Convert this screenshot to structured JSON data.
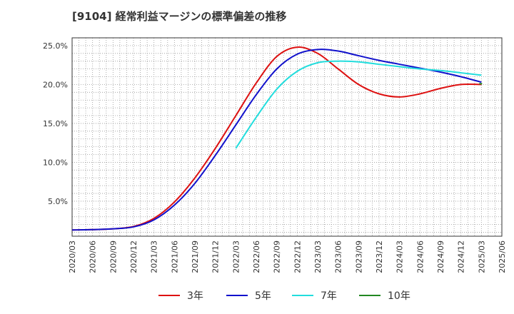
{
  "chart_data": {
    "type": "line",
    "title": "[9104]  経常利益マージンの標準偏差の推移",
    "xlabel": "",
    "ylabel": "",
    "x_ticks": [
      "2020/03",
      "2020/06",
      "2020/09",
      "2020/12",
      "2021/03",
      "2021/06",
      "2021/09",
      "2021/12",
      "2022/03",
      "2022/06",
      "2022/09",
      "2022/12",
      "2023/03",
      "2023/06",
      "2023/09",
      "2023/12",
      "2024/03",
      "2024/06",
      "2024/09",
      "2024/12",
      "2025/03",
      "2025/06"
    ],
    "y_ticks": [
      5.0,
      10.0,
      15.0,
      20.0,
      25.0
    ],
    "y_tick_labels": [
      "5.0%",
      "10.0%",
      "15.0%",
      "20.0%",
      "25.0%"
    ],
    "ylim": [
      0.5,
      26.0
    ],
    "grid": true,
    "legend_position": "bottom",
    "series": [
      {
        "name": "3年",
        "color": "#dd1111",
        "x": [
          "2020/03",
          "2020/06",
          "2020/09",
          "2020/12",
          "2021/03",
          "2021/06",
          "2021/09",
          "2021/12",
          "2022/03",
          "2022/06",
          "2022/09",
          "2022/12",
          "2023/03",
          "2023/06",
          "2023/09",
          "2023/12",
          "2024/03",
          "2024/06",
          "2024/09",
          "2024/12",
          "2025/03"
        ],
        "values": [
          1.3,
          1.35,
          1.45,
          1.75,
          2.8,
          4.9,
          8.0,
          11.8,
          16.0,
          20.2,
          23.6,
          24.8,
          24.0,
          22.0,
          20.0,
          18.8,
          18.4,
          18.8,
          19.5,
          20.0,
          20.0
        ]
      },
      {
        "name": "5年",
        "color": "#1111cc",
        "x": [
          "2020/03",
          "2020/06",
          "2020/09",
          "2020/12",
          "2021/03",
          "2021/06",
          "2021/09",
          "2021/12",
          "2022/03",
          "2022/06",
          "2022/09",
          "2022/12",
          "2023/03",
          "2023/06",
          "2023/09",
          "2023/12",
          "2024/03",
          "2024/06",
          "2024/09",
          "2024/12",
          "2025/03"
        ],
        "values": [
          1.3,
          1.35,
          1.45,
          1.7,
          2.6,
          4.5,
          7.3,
          10.9,
          14.8,
          18.7,
          22.0,
          23.9,
          24.5,
          24.3,
          23.7,
          23.1,
          22.6,
          22.1,
          21.6,
          21.0,
          20.3
        ]
      },
      {
        "name": "7年",
        "color": "#22dddd",
        "x": [
          "2022/03",
          "2022/06",
          "2022/09",
          "2022/12",
          "2023/03",
          "2023/06",
          "2023/09",
          "2023/12",
          "2024/03",
          "2024/06",
          "2024/09",
          "2024/12",
          "2025/03"
        ],
        "values": [
          11.8,
          15.8,
          19.4,
          21.7,
          22.8,
          23.0,
          22.9,
          22.6,
          22.3,
          22.0,
          21.8,
          21.5,
          21.2
        ]
      },
      {
        "name": "10年",
        "color": "#228822",
        "x": [
          "2025/03"
        ],
        "values": [
          20.1
        ]
      }
    ]
  }
}
